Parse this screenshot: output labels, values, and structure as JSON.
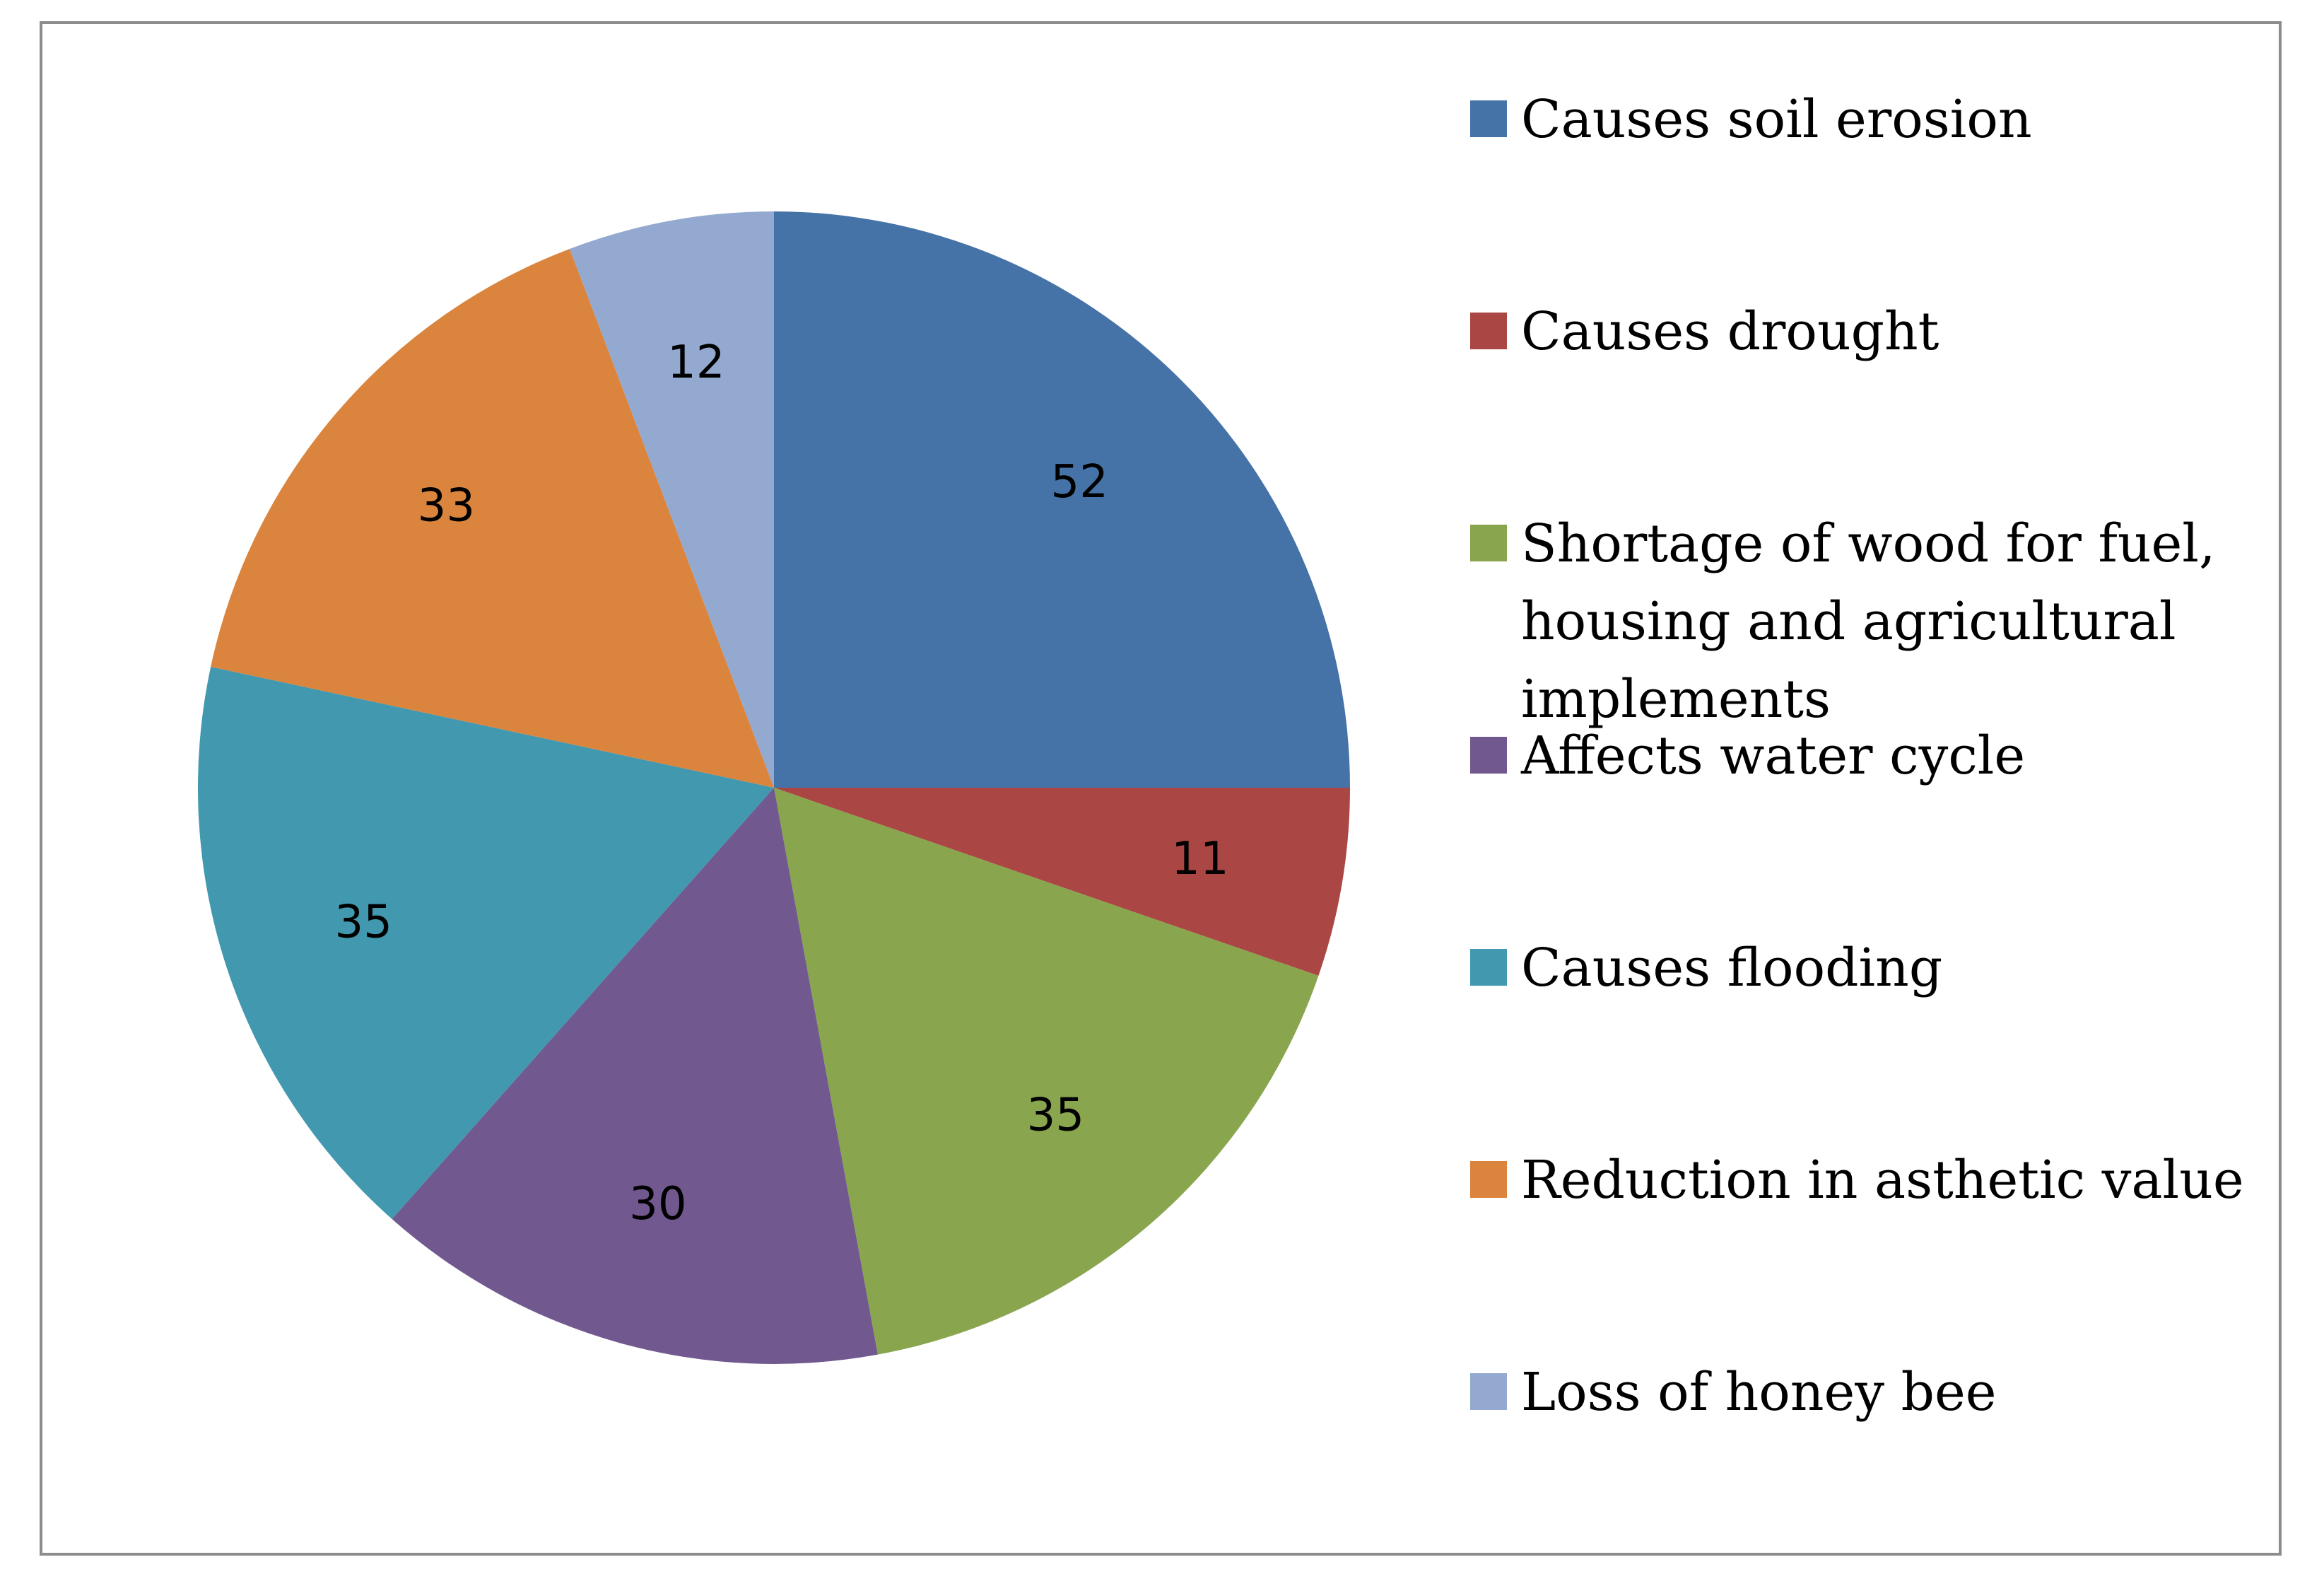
{
  "chart_data": {
    "type": "pie",
    "title": "",
    "start_angle_deg": 0,
    "direction": "clockwise",
    "slices": [
      {
        "label": "Causes soil erosion",
        "value": 52,
        "color": "#4572A7"
      },
      {
        "label": "Causes drought",
        "value": 11,
        "color": "#AA4643"
      },
      {
        "label": "Shortage of wood for fuel, housing and agricultural implements",
        "value": 35,
        "color": "#89A54E"
      },
      {
        "label": "Affects water cycle",
        "value": 30,
        "color": "#71588F"
      },
      {
        "label": "Causes flooding",
        "value": 35,
        "color": "#4198AF"
      },
      {
        "label": "Reduction in asthetic value",
        "value": 33,
        "color": "#DB843D"
      },
      {
        "label": "Loss of honey bee",
        "value": 12,
        "color": "#93A9CF"
      }
    ],
    "legend_position": "right"
  }
}
